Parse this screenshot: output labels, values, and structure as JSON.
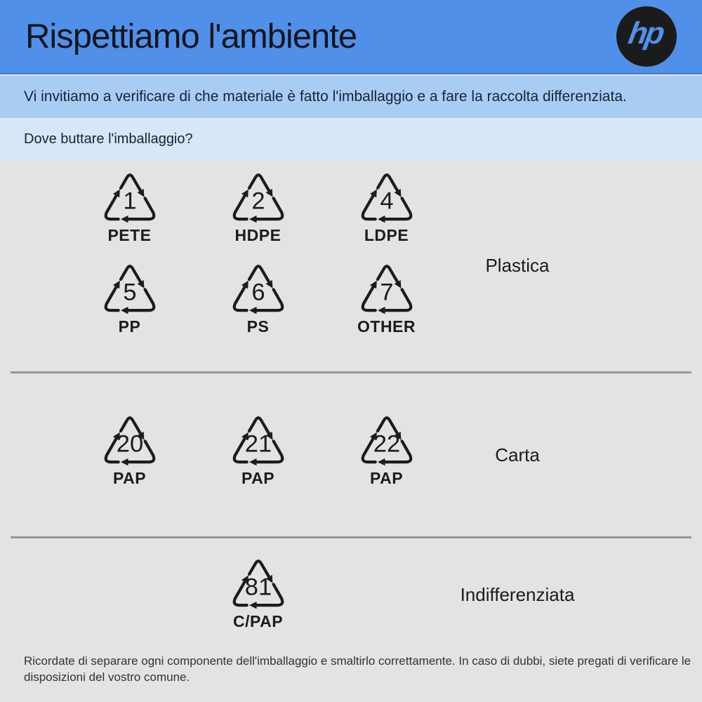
{
  "header": {
    "title": "Rispettiamo l'ambiente",
    "logo_text": "hp"
  },
  "intro_banner": {
    "text": "Vi invitiamo a verificare di che materiale è fatto l'imballaggio e a fare la raccolta differenziata."
  },
  "question_banner": {
    "text": "Dove buttare l'imballaggio?"
  },
  "sections": [
    {
      "category": "Plastica",
      "rows": [
        [
          {
            "number": "1",
            "code": "PETE"
          },
          {
            "number": "2",
            "code": "HDPE"
          },
          {
            "number": "4",
            "code": "LDPE"
          }
        ],
        [
          {
            "number": "5",
            "code": "PP"
          },
          {
            "number": "6",
            "code": "PS"
          },
          {
            "number": "7",
            "code": "OTHER"
          }
        ]
      ]
    },
    {
      "category": "Carta",
      "rows": [
        [
          {
            "number": "20",
            "code": "PAP"
          },
          {
            "number": "21",
            "code": "PAP"
          },
          {
            "number": "22",
            "code": "PAP"
          }
        ]
      ]
    },
    {
      "category": "Indifferenziata",
      "rows": [
        [
          null,
          {
            "number": "81",
            "code": "C/PAP"
          }
        ]
      ]
    }
  ],
  "footer": {
    "text": "Ricordate di separare ogni componente dell'imballaggio e smaltirlo correttamente. In caso di dubbi, siete pregati di verificare le disposizioni del vostro comune."
  },
  "colors": {
    "header_bg": "#5190E8",
    "intro_bg": "#A9CCF3",
    "question_bg": "#D8E6F8",
    "body_bg": "#E3E3E3",
    "ink": "#1C1C1C",
    "navy": "#152238",
    "logo_bg": "#1B1B1B"
  }
}
